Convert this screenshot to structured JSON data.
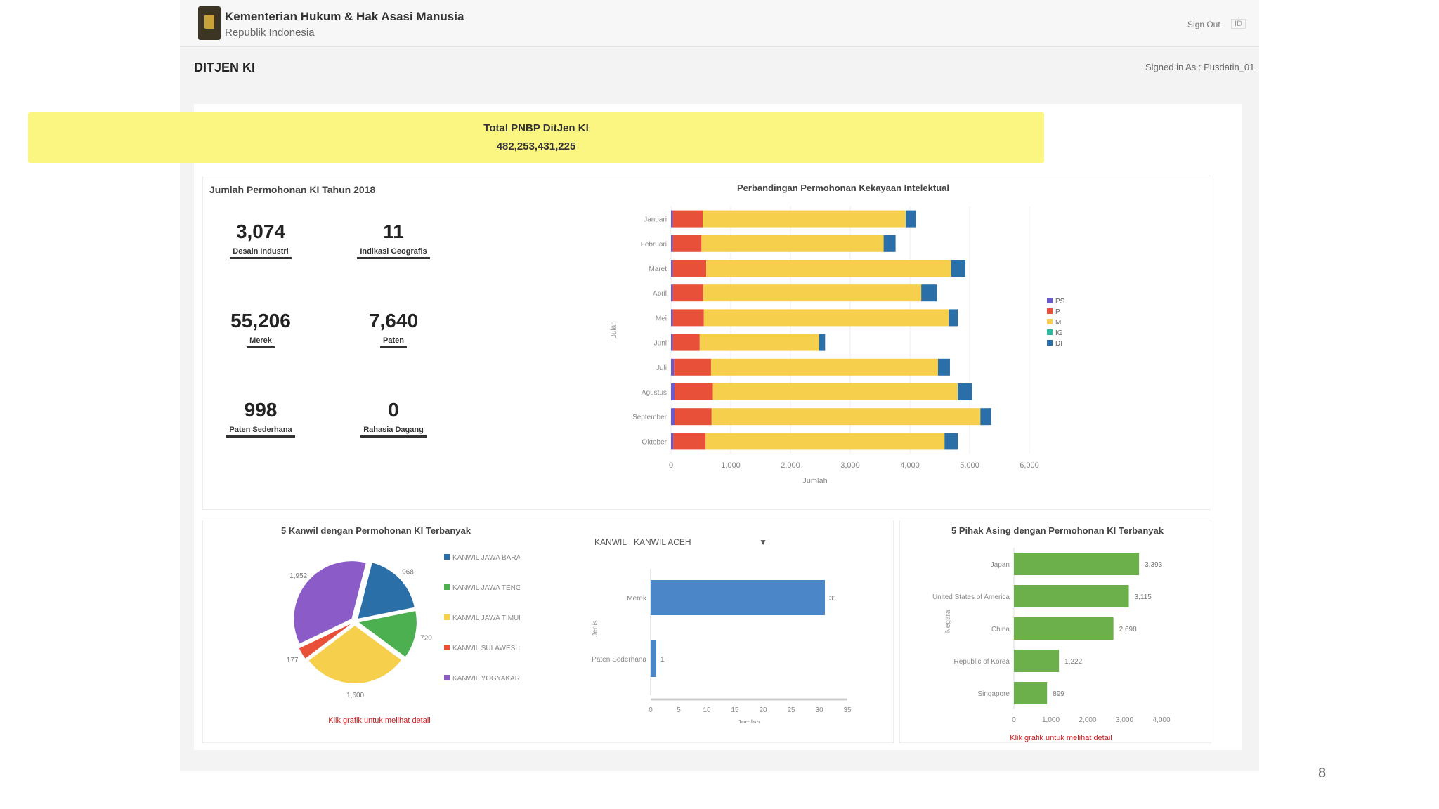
{
  "header": {
    "org_name": "Kementerian Hukum & Hak Asasi Manusia",
    "org_sub": "Republik Indonesia",
    "signout": "Sign Out",
    "lang": "ID"
  },
  "page": {
    "title": "DITJEN KI",
    "signed_in": "Signed in As : Pusdatin_01"
  },
  "banner": {
    "label": "Total PNBP DitJen KI",
    "value": "482,253,431,225"
  },
  "stats_section": {
    "title": "Jumlah Permohonan KI Tahun 2018",
    "stats": [
      {
        "value": "3,074",
        "label": "Desain Industri"
      },
      {
        "value": "11",
        "label": "Indikasi Geografis"
      },
      {
        "value": "55,206",
        "label": "Merek"
      },
      {
        "value": "7,640",
        "label": "Paten"
      },
      {
        "value": "998",
        "label": "Paten Sederhana"
      },
      {
        "value": "0",
        "label": "Rahasia Dagang"
      }
    ]
  },
  "chart_data": [
    {
      "type": "bar",
      "orientation": "horizontal",
      "stacked": true,
      "title": "Perbandingan Permohonan Kekayaan Intelektual",
      "xlabel": "Jumlah",
      "ylabel": "Bulan",
      "categories": [
        "Januari",
        "Februari",
        "Maret",
        "April",
        "Mei",
        "Juni",
        "Juli",
        "Agustus",
        "September",
        "Oktober"
      ],
      "series": [
        {
          "name": "PS",
          "color": "#6a5acd",
          "values": [
            30,
            30,
            30,
            30,
            30,
            30,
            50,
            60,
            60,
            40
          ]
        },
        {
          "name": "P",
          "color": "#e8503a",
          "values": [
            500,
            480,
            560,
            510,
            520,
            450,
            620,
            640,
            620,
            540
          ]
        },
        {
          "name": "M",
          "color": "#f6d04d",
          "values": [
            3400,
            3050,
            4100,
            3650,
            4100,
            2000,
            3800,
            4100,
            4500,
            4000
          ]
        },
        {
          "name": "IG",
          "color": "#2fb9a0",
          "values": [
            0,
            0,
            0,
            0,
            0,
            0,
            0,
            0,
            0,
            0
          ]
        },
        {
          "name": "DI",
          "color": "#2a6fa8",
          "values": [
            170,
            200,
            240,
            260,
            150,
            100,
            200,
            240,
            180,
            220
          ]
        }
      ],
      "xlim": [
        0,
        6000
      ],
      "xticks": [
        "0",
        "1,000",
        "2,000",
        "3,000",
        "4,000",
        "5,000",
        "6,000"
      ],
      "legend_position": "right",
      "grid": true
    },
    {
      "type": "pie",
      "title": "5 Kanwil dengan Permohonan KI Terbanyak",
      "labels": [
        "KANWIL JAWA BARAT",
        "KANWIL JAWA TENGAH",
        "KANWIL JAWA TIMUR",
        "KANWIL SULAWESI SELATAN",
        "KANWIL YOGYAKARTA"
      ],
      "values": [
        968,
        720,
        1600,
        177,
        1952
      ],
      "slice_labels": [
        "968",
        "720",
        "1,600",
        "177",
        "1,952"
      ],
      "colors": [
        "#2a6fa8",
        "#4cb050",
        "#f6d04d",
        "#e8503a",
        "#8b5cc8"
      ],
      "legend_position": "right",
      "note": "Klik grafik untuk melihat detail"
    },
    {
      "type": "bar",
      "orientation": "horizontal",
      "title": "",
      "filter_label": "KANWIL",
      "filter_value": "KANWIL ACEH",
      "categories": [
        "Merek",
        "Paten Sederhana"
      ],
      "values": [
        31,
        1
      ],
      "value_labels": [
        "31",
        "1"
      ],
      "color": "#4a86c8",
      "xlim": [
        0,
        35
      ],
      "xticks": [
        "0",
        "5",
        "10",
        "15",
        "20",
        "25",
        "30",
        "35"
      ],
      "xlabel": "Jumlah",
      "ylabel": "Jenis"
    },
    {
      "type": "bar",
      "orientation": "horizontal",
      "title": "5 Pihak Asing dengan Permohonan KI Terbanyak",
      "categories": [
        "Japan",
        "United States of America",
        "China",
        "Republic of Korea",
        "Singapore"
      ],
      "values": [
        3393,
        3115,
        2698,
        1222,
        899
      ],
      "value_labels": [
        "3,393",
        "3,115",
        "2,698",
        "1,222",
        "899"
      ],
      "color": "#6cb04c",
      "xlim": [
        0,
        4000
      ],
      "xticks": [
        "0",
        "1,000",
        "2,000",
        "3,000",
        "4,000"
      ],
      "ylabel": "Negara",
      "note": "Klik grafik untuk melihat detail"
    }
  ],
  "footer": {
    "page_number": "8"
  }
}
